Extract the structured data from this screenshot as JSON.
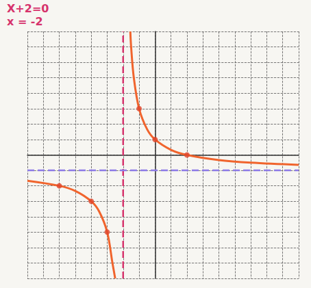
{
  "chart_data": {
    "type": "line",
    "annotations": [
      "X+2=0",
      "x = -2"
    ],
    "xlim": [
      -8,
      9
    ],
    "ylim": [
      -8,
      8
    ],
    "xticks": [
      -8,
      -7,
      -6,
      -5,
      -4,
      -3,
      -2,
      -1,
      0,
      1,
      2,
      3,
      4,
      5,
      6,
      7,
      8,
      9
    ],
    "yticks": [
      -8,
      -7,
      -6,
      -5,
      -4,
      -3,
      -2,
      -1,
      0,
      1,
      2,
      3,
      4,
      5,
      6,
      7,
      8
    ],
    "grid": true,
    "tick_labels": false,
    "series": [
      {
        "type": "line",
        "color": "#d6336c",
        "line_style": "dashed",
        "marker": "none",
        "x": [
          -2,
          -2
        ],
        "values": [
          -8,
          8
        ]
      },
      {
        "type": "line",
        "color": "#8c7ae6",
        "line_style": "dashed",
        "marker": "none",
        "x": [
          -8,
          9
        ],
        "values": [
          -1,
          -1
        ]
      },
      {
        "type": "line",
        "color": "#f0642d",
        "line_style": "solid",
        "marker": "none",
        "x": [
          -1.55,
          -1.5,
          -1.33,
          -1,
          -0.5,
          0,
          1,
          2,
          4,
          6,
          9
        ],
        "values": [
          8,
          7,
          5,
          3,
          1.67,
          1,
          0.33,
          0,
          -0.33,
          -0.5,
          -0.64
        ]
      },
      {
        "type": "line",
        "color": "#f0642d",
        "line_style": "solid",
        "marker": "none",
        "x": [
          -8,
          -6,
          -5,
          -4,
          -3.5,
          -3,
          -2.67,
          -2.5
        ],
        "values": [
          -1.67,
          -2,
          -2.33,
          -3,
          -3.67,
          -5,
          -7,
          -8
        ]
      },
      {
        "type": "scatter",
        "color": "#e0452a",
        "marker": "circle",
        "x": [
          -1,
          0,
          2,
          -6,
          -4,
          -3
        ],
        "values": [
          3,
          1,
          0,
          -2,
          -3,
          -5
        ]
      }
    ]
  }
}
